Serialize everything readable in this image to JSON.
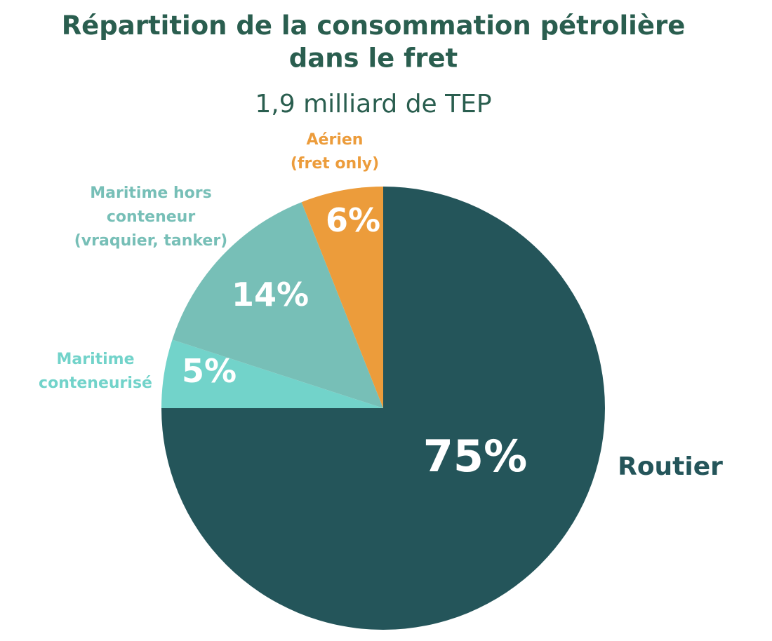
{
  "chart_data": {
    "type": "pie",
    "title": "Répartition de la consommation pétrolière\ndans le fret",
    "subtitle": "1,9 milliard de TEP",
    "categories": [
      "Routier",
      "Maritime\nconteneurisé",
      "Maritime hors\nconteneur\n(vraquier, tanker)",
      "Aérien\n(fret only)"
    ],
    "values": [
      75,
      5,
      14,
      6
    ],
    "value_labels": [
      "75%",
      "5%",
      "14%",
      "6%"
    ],
    "colors": [
      "#24555a",
      "#72d3ca",
      "#77bfb7",
      "#ec9c3b"
    ],
    "label_colors": [
      "#24555a",
      "#72d3ca",
      "#77bfb7",
      "#ec9c3b"
    ]
  }
}
